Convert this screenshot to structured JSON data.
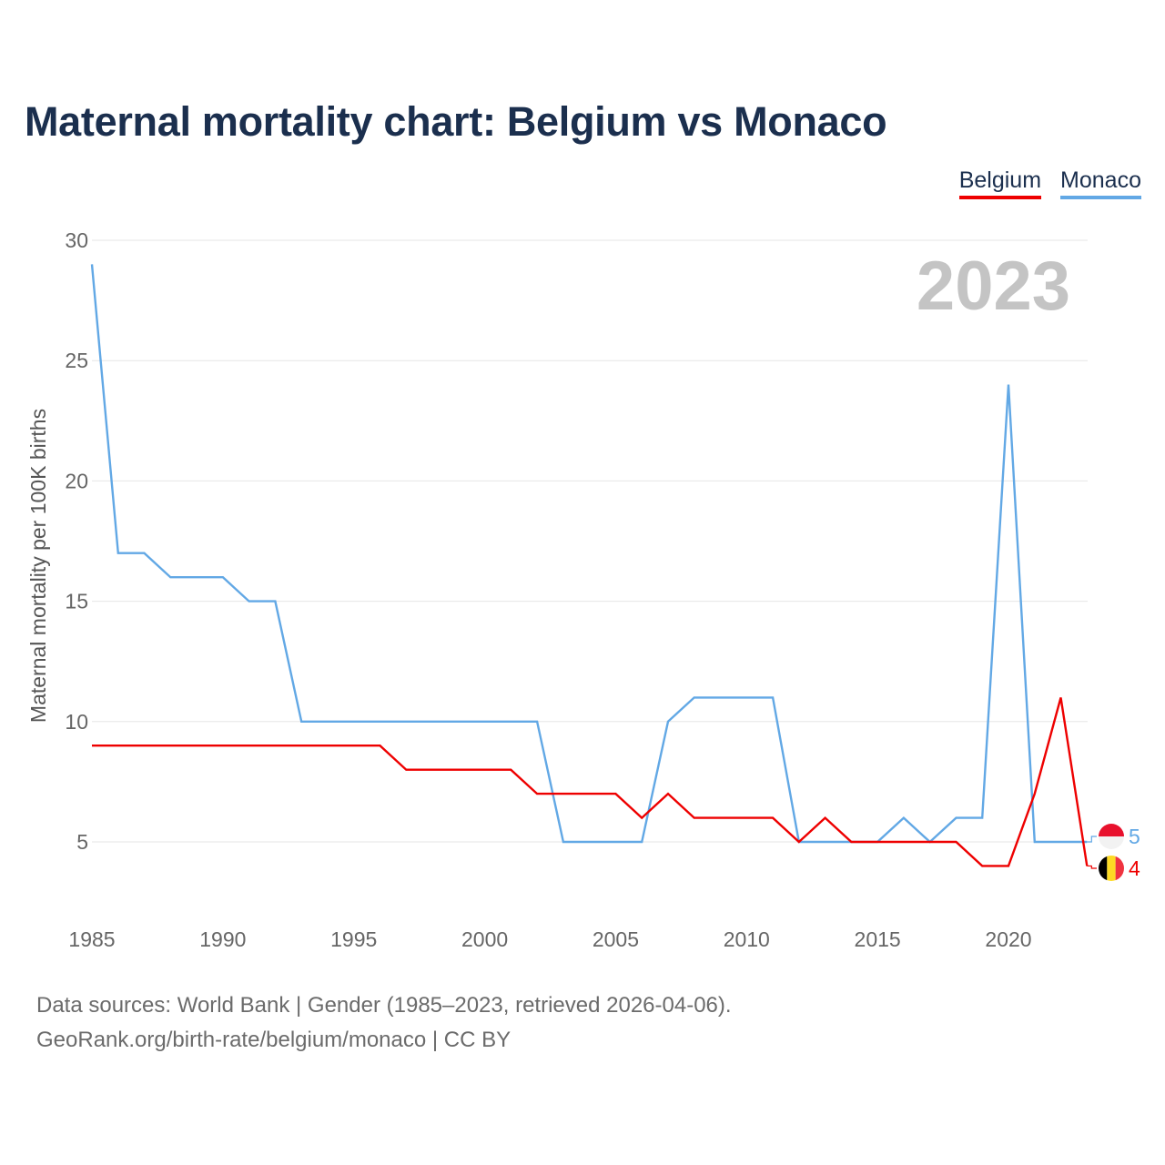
{
  "header": {
    "title": "Maternal mortality chart: Belgium vs Monaco"
  },
  "legend": {
    "belgium": "Belgium",
    "monaco": "Monaco"
  },
  "footer": {
    "line1": "Data sources: World Bank | Gender (1985–2023, retrieved 2026-04-06).",
    "line2": "GeoRank.org/birth-rate/belgium/monaco | CC BY"
  },
  "chart_data": {
    "type": "line",
    "title": "Maternal mortality chart: Belgium vs Monaco",
    "current_year": "2023",
    "ylabel": "Maternal mortality per 100K births",
    "xlabel": "",
    "x": [
      1985,
      1986,
      1987,
      1988,
      1989,
      1990,
      1991,
      1992,
      1993,
      1994,
      1995,
      1996,
      1997,
      1998,
      1999,
      2000,
      2001,
      2002,
      2003,
      2004,
      2005,
      2006,
      2007,
      2008,
      2009,
      2010,
      2011,
      2012,
      2013,
      2014,
      2015,
      2016,
      2017,
      2018,
      2019,
      2020,
      2021,
      2022,
      2023
    ],
    "xlim": [
      1985,
      2023
    ],
    "ylim": [
      2.5,
      30
    ],
    "xticks": [
      1985,
      1990,
      1995,
      2000,
      2005,
      2010,
      2015,
      2020
    ],
    "yticks": [
      5,
      10,
      15,
      20,
      25,
      30
    ],
    "grid": true,
    "legend_position": "top-right",
    "series": [
      {
        "name": "Belgium",
        "color": "#ee0000",
        "values": [
          9,
          9,
          9,
          9,
          9,
          9,
          9,
          9,
          9,
          9,
          9,
          9,
          8,
          8,
          8,
          8,
          8,
          7,
          7,
          7,
          7,
          6,
          7,
          6,
          6,
          6,
          6,
          5,
          6,
          5,
          5,
          5,
          5,
          5,
          4,
          4,
          7,
          11,
          4
        ],
        "end_value": "4"
      },
      {
        "name": "Monaco",
        "color": "#62a8e5",
        "values": [
          29,
          17,
          17,
          16,
          16,
          16,
          15,
          15,
          10,
          10,
          10,
          10,
          10,
          10,
          10,
          10,
          10,
          10,
          5,
          5,
          5,
          5,
          10,
          11,
          11,
          11,
          11,
          5,
          5,
          5,
          5,
          6,
          5,
          6,
          6,
          24,
          5,
          5,
          5
        ],
        "end_value": "5"
      }
    ]
  }
}
